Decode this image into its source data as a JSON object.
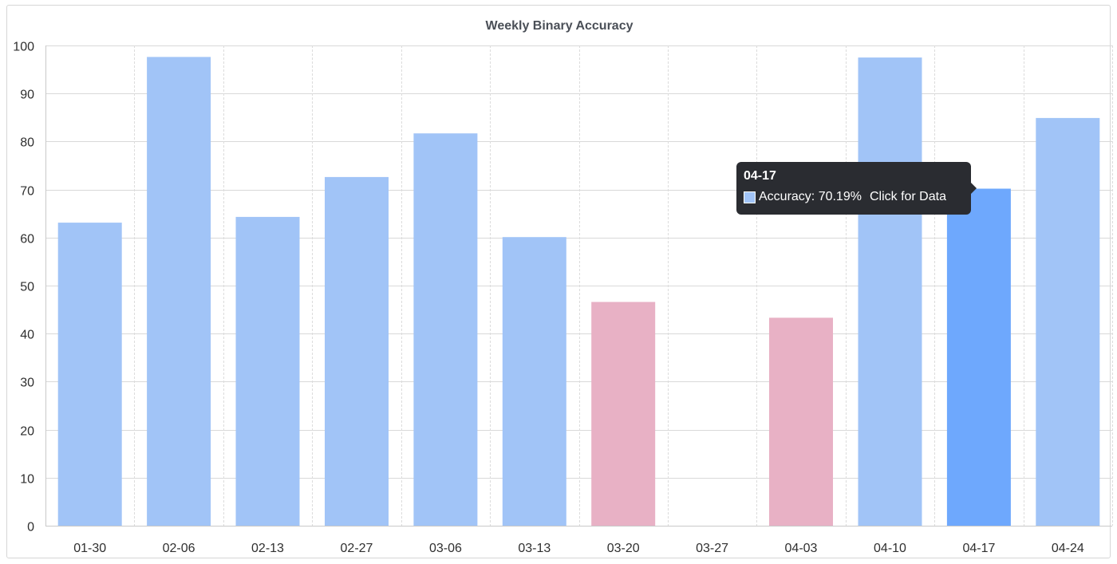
{
  "colors": {
    "above": "#a1c4f7",
    "below": "#e8b1c5",
    "highlight": "#6ea8fd",
    "tooltip_bg": "#2a2c31"
  },
  "chart_data": {
    "type": "bar",
    "title": "Weekly Binary Accuracy",
    "xlabel": "",
    "ylabel": "",
    "ylim": [
      0,
      100
    ],
    "yticks": [
      0,
      10,
      20,
      30,
      40,
      50,
      60,
      70,
      80,
      90,
      100
    ],
    "categories": [
      "01-30",
      "02-06",
      "02-13",
      "02-27",
      "03-06",
      "03-13",
      "03-20",
      "03-27",
      "04-03",
      "04-10",
      "04-17",
      "04-24"
    ],
    "values": [
      63.1,
      97.6,
      64.3,
      72.6,
      81.7,
      60.1,
      46.6,
      0,
      43.3,
      97.5,
      70.19,
      84.9
    ],
    "bar_colors": [
      "above",
      "above",
      "above",
      "above",
      "above",
      "above",
      "below",
      "below",
      "below",
      "above",
      "highlight",
      "above"
    ],
    "grid": true,
    "legend": "none"
  },
  "tooltip": {
    "title": "04-17",
    "label": "Accuracy: 70.19%",
    "action": "Click for Data"
  }
}
